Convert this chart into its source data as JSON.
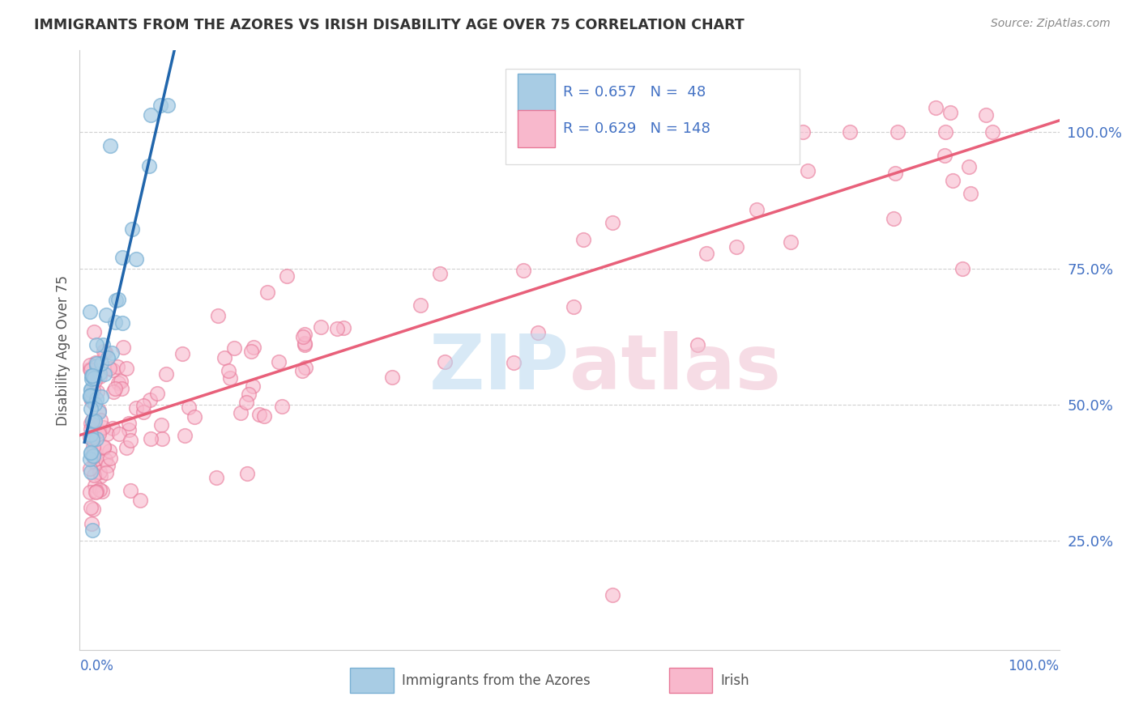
{
  "title": "IMMIGRANTS FROM THE AZORES VS IRISH DISABILITY AGE OVER 75 CORRELATION CHART",
  "source": "Source: ZipAtlas.com",
  "ylabel": "Disability Age Over 75",
  "legend_blue_label": "Immigrants from the Azores",
  "legend_pink_label": "Irish",
  "blue_color": "#a8cce4",
  "blue_edge_color": "#7ab0d4",
  "pink_color": "#f8b8cc",
  "pink_edge_color": "#e87898",
  "blue_line_color": "#2166ac",
  "pink_line_color": "#e8607a",
  "legend_r_color": "#4472c4",
  "ytick_color": "#4472c4",
  "xlabel_color": "#4472c4",
  "title_color": "#333333",
  "source_color": "#888888",
  "grid_color": "#cccccc",
  "watermark_zip_color": "#b8d8f0",
  "watermark_atlas_color": "#f0c0d0"
}
